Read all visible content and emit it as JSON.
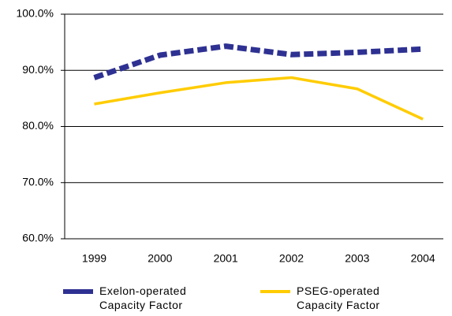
{
  "chart_data": {
    "type": "line",
    "categories": [
      "1999",
      "2000",
      "2001",
      "2002",
      "2003",
      "2004"
    ],
    "series": [
      {
        "name": "Exelon-operated Capacity Factor",
        "color": "#2e3192",
        "dashed": true,
        "values": [
          88.7,
          92.7,
          94.3,
          92.8,
          93.2,
          93.8
        ]
      },
      {
        "name": "PSEG-operated Capacity Factor",
        "color": "#ffcc00",
        "dashed": false,
        "values": [
          84.0,
          86.0,
          87.8,
          88.7,
          86.7,
          81.3
        ]
      }
    ],
    "ylim": [
      60,
      100
    ],
    "yticks": [
      {
        "value": 60,
        "label": "60.0%"
      },
      {
        "value": 70,
        "label": "70.0%"
      },
      {
        "value": 80,
        "label": "80.0%"
      },
      {
        "value": 90,
        "label": "90.0%"
      },
      {
        "value": 100,
        "label": "100.0%"
      }
    ],
    "grid": true,
    "legend": "bottom"
  }
}
